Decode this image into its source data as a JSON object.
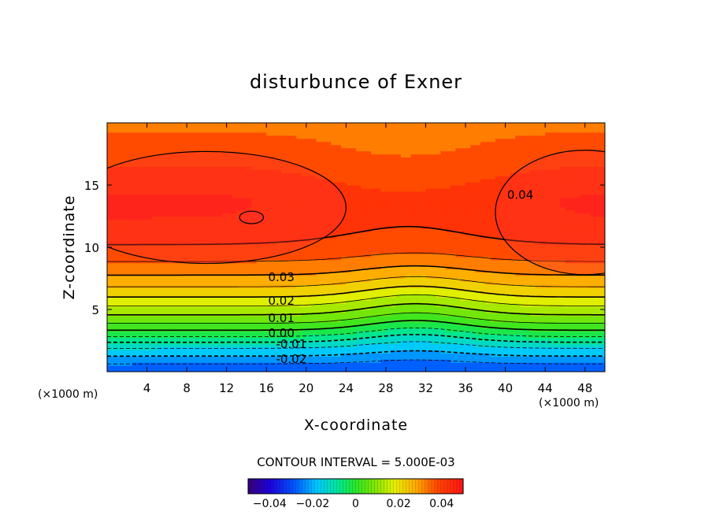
{
  "chart_data": {
    "type": "heatmap",
    "title": "disturbunce of Exner",
    "xlabel": "X-coordinate",
    "ylabel": "Z-coordinate",
    "x_unit": "(×1000 m)",
    "z_unit": "(×1000 m)",
    "xlim": [
      0,
      50
    ],
    "ylim": [
      0,
      20
    ],
    "x_ticks": [
      4,
      8,
      12,
      16,
      20,
      24,
      28,
      32,
      36,
      40,
      44,
      48
    ],
    "y_ticks": [
      5,
      10,
      15
    ],
    "contour_interval_label": "CONTOUR INTERVAL = 5.000E-03",
    "contour_interval": 0.005,
    "contour_labels": [
      {
        "text": "0.03",
        "x": 17.5,
        "z": 7.6
      },
      {
        "text": "0.02",
        "x": 17.5,
        "z": 5.7
      },
      {
        "text": "0.01",
        "x": 17.5,
        "z": 4.3
      },
      {
        "text": "0.00",
        "x": 17.5,
        "z": 3.1
      },
      {
        "text": "-0.01",
        "x": 18.5,
        "z": 2.2
      },
      {
        "text": "-0.02",
        "x": 18.5,
        "z": 1.0
      },
      {
        "text": "0.04",
        "x": 41.5,
        "z": 14.2
      }
    ],
    "colorbar": {
      "min": -0.05,
      "max": 0.05,
      "tick_values": [
        -0.04,
        -0.02,
        0,
        0.02,
        0.04
      ],
      "tick_labels": [
        "−0.04",
        "−0.02",
        "0",
        "0.02",
        "0.04"
      ]
    },
    "field_profile": {
      "z": [
        0,
        1,
        2,
        3,
        4,
        5,
        6,
        7,
        8,
        9,
        10,
        12,
        14,
        16,
        18,
        20
      ],
      "value": [
        -0.03,
        -0.022,
        -0.014,
        -0.003,
        0.006,
        0.013,
        0.02,
        0.026,
        0.031,
        0.035,
        0.038,
        0.041,
        0.042,
        0.04,
        0.037,
        0.034
      ]
    }
  }
}
